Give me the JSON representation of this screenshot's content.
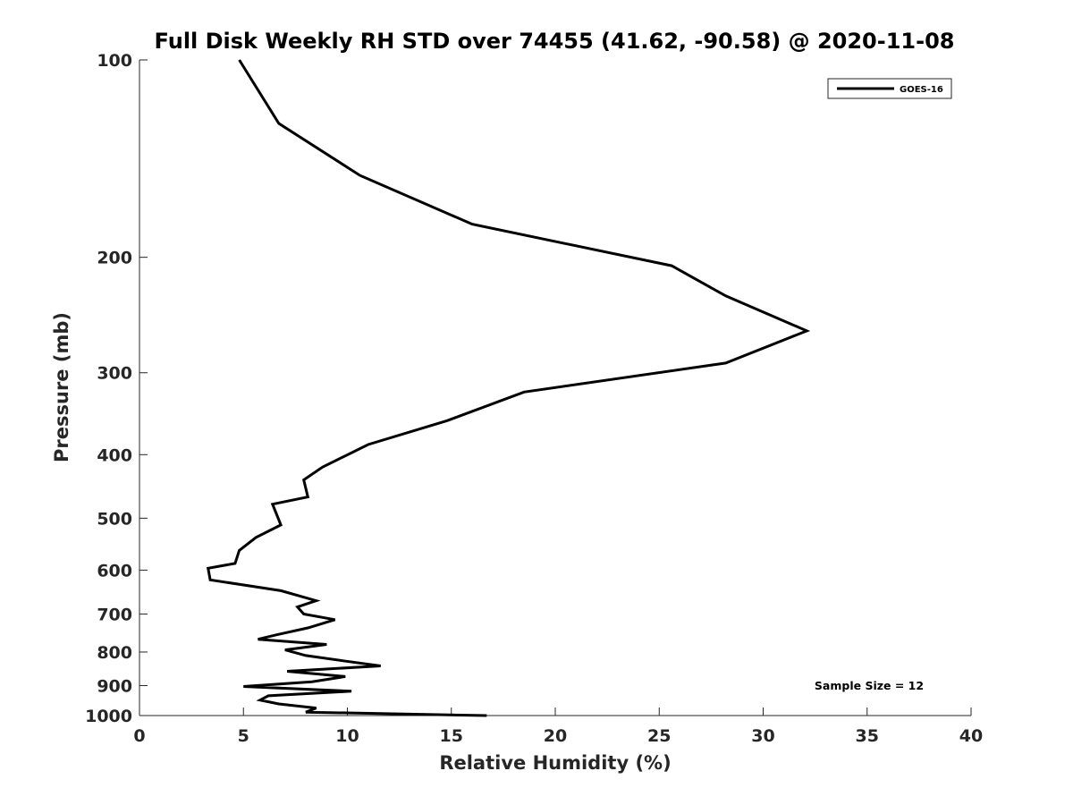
{
  "chart_data": {
    "type": "line",
    "title": "Full Disk Weekly RH STD over 74455 (41.62, -90.58) @ 2020-11-08",
    "xlabel": "Relative Humidity (%)",
    "ylabel": "Pressure (mb)",
    "xlim": [
      0,
      40
    ],
    "ylim": [
      100,
      1000
    ],
    "y_scale": "log",
    "y_reversed": true,
    "x_ticks": [
      "0",
      "5",
      "10",
      "15",
      "20",
      "25",
      "30",
      "35",
      "40"
    ],
    "y_ticks": [
      "100",
      "200",
      "300",
      "400",
      "500",
      "600",
      "700",
      "800",
      "900",
      "1000"
    ],
    "grid": false,
    "legend_position": "top-right",
    "annotation": "Sample Size = 12",
    "series": [
      {
        "name": "GOES-16",
        "color": "#000000",
        "points": [
          [
            4.8,
            100
          ],
          [
            6.7,
            125
          ],
          [
            10.6,
            150
          ],
          [
            16.0,
            178
          ],
          [
            25.6,
            206
          ],
          [
            28.2,
            229
          ],
          [
            32.1,
            259
          ],
          [
            28.2,
            290
          ],
          [
            18.5,
            321
          ],
          [
            14.8,
            355
          ],
          [
            11.0,
            386
          ],
          [
            8.8,
            418
          ],
          [
            7.9,
            437
          ],
          [
            8.1,
            464
          ],
          [
            6.4,
            476
          ],
          [
            6.8,
            512
          ],
          [
            5.6,
            535
          ],
          [
            4.8,
            560
          ],
          [
            4.6,
            586
          ],
          [
            3.3,
            596
          ],
          [
            3.4,
            621
          ],
          [
            6.8,
            645
          ],
          [
            8.5,
            668
          ],
          [
            7.6,
            683
          ],
          [
            7.9,
            700
          ],
          [
            9.4,
            714
          ],
          [
            8.1,
            735
          ],
          [
            6.6,
            753
          ],
          [
            5.7,
            765
          ],
          [
            9.0,
            779
          ],
          [
            7.0,
            794
          ],
          [
            8.0,
            810
          ],
          [
            9.8,
            825
          ],
          [
            11.6,
            840
          ],
          [
            7.1,
            856
          ],
          [
            9.9,
            872
          ],
          [
            8.3,
            888
          ],
          [
            5.0,
            903
          ],
          [
            10.2,
            918
          ],
          [
            6.2,
            933
          ],
          [
            5.8,
            947
          ],
          [
            6.7,
            960
          ],
          [
            8.5,
            974
          ],
          [
            8.0,
            988
          ],
          [
            16.7,
            1000
          ]
        ]
      }
    ]
  }
}
